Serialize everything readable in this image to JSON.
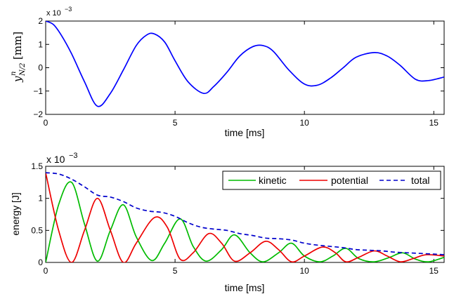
{
  "chart_data": [
    {
      "type": "line",
      "xlabel": "time [ms]",
      "ylabel_main": "y",
      "ylabel_sup": "n",
      "ylabel_sub": "N/2",
      "ylabel_unit": "[mm]",
      "y_exponent_base": "x 10",
      "y_exponent": "−3",
      "xlim": [
        0,
        15.4
      ],
      "ylim": [
        -2,
        2
      ],
      "xticks": [
        0,
        5,
        10,
        15
      ],
      "yticks": [
        -2,
        -1,
        0,
        1,
        2
      ],
      "xtick_labels": [
        "0",
        "5",
        "10",
        "15"
      ],
      "ytick_labels": [
        "−2",
        "−1",
        "0",
        "1",
        "2"
      ],
      "series": [
        {
          "color": "#0000ff",
          "style": "solid",
          "x": [
            0,
            0.3,
            0.6,
            1.0,
            1.5,
            2.0,
            2.5,
            3.0,
            3.5,
            3.9,
            4.2,
            4.6,
            5.0,
            5.5,
            6.1,
            6.5,
            7.0,
            7.5,
            8.0,
            8.4,
            8.8,
            9.4,
            10.0,
            10.5,
            11.0,
            11.5,
            12.0,
            12.7,
            13.2,
            13.7,
            14.3,
            14.8,
            15.4
          ],
          "y": [
            2.0,
            1.85,
            1.4,
            0.6,
            -0.6,
            -1.65,
            -1.1,
            -0.1,
            0.95,
            1.4,
            1.45,
            1.1,
            0.3,
            -0.6,
            -1.1,
            -0.8,
            -0.2,
            0.5,
            0.9,
            0.95,
            0.7,
            -0.1,
            -0.7,
            -0.75,
            -0.45,
            0.0,
            0.45,
            0.65,
            0.5,
            0.1,
            -0.5,
            -0.55,
            -0.4
          ]
        }
      ]
    },
    {
      "type": "line",
      "xlabel": "time [ms]",
      "ylabel": "energy [J]",
      "y_exponent_base": "x 10",
      "y_exponent": "−3",
      "xlim": [
        0,
        15.4
      ],
      "ylim": [
        0,
        1.5
      ],
      "xticks": [
        0,
        5,
        10,
        15
      ],
      "yticks": [
        0,
        0.5,
        1,
        1.5
      ],
      "xtick_labels": [
        "0",
        "5",
        "10",
        "15"
      ],
      "ytick_labels": [
        "0",
        "0.5",
        "1",
        "1.5"
      ],
      "legend_position": "top-right",
      "series": [
        {
          "name": "kinetic",
          "color": "#00bb00",
          "style": "solid",
          "x": [
            0,
            0.5,
            1.0,
            1.5,
            2.0,
            2.5,
            3.0,
            3.5,
            4.1,
            4.6,
            5.2,
            5.7,
            6.2,
            6.8,
            7.3,
            7.9,
            8.4,
            9.0,
            9.5,
            10.0,
            10.6,
            11.1,
            11.6,
            12.1,
            12.7,
            13.3,
            13.8,
            14.3,
            14.8,
            15.4
          ],
          "y": [
            0,
            0.9,
            1.25,
            0.6,
            0.02,
            0.5,
            0.9,
            0.4,
            0.03,
            0.3,
            0.68,
            0.25,
            0.02,
            0.2,
            0.43,
            0.15,
            0.01,
            0.15,
            0.3,
            0.1,
            0.01,
            0.1,
            0.22,
            0.06,
            0.01,
            0.08,
            0.15,
            0.05,
            0.01,
            0.08
          ]
        },
        {
          "name": "potential",
          "color": "#ee0000",
          "style": "solid",
          "x": [
            0,
            0.5,
            1.0,
            1.5,
            2.0,
            2.5,
            3.0,
            3.5,
            4.2,
            4.7,
            5.2,
            5.7,
            6.3,
            6.8,
            7.3,
            7.9,
            8.5,
            9.0,
            9.5,
            10.0,
            10.7,
            11.2,
            11.6,
            12.1,
            12.7,
            13.2,
            13.7,
            14.2,
            14.7,
            15.4
          ],
          "y": [
            1.4,
            0.5,
            0.0,
            0.5,
            1.0,
            0.5,
            0.0,
            0.3,
            0.7,
            0.55,
            0.05,
            0.15,
            0.45,
            0.3,
            0.02,
            0.15,
            0.33,
            0.2,
            0.01,
            0.1,
            0.24,
            0.15,
            0.01,
            0.08,
            0.18,
            0.1,
            0.01,
            0.06,
            0.12,
            0.1
          ]
        },
        {
          "name": "total",
          "color": "#0000cc",
          "style": "dashed",
          "x": [
            0,
            0.5,
            1.0,
            1.5,
            2.0,
            2.5,
            3.0,
            3.5,
            4.0,
            4.5,
            5.0,
            5.5,
            6.0,
            6.5,
            7.0,
            7.5,
            8.0,
            8.5,
            9.0,
            9.5,
            10.0,
            10.5,
            11.0,
            11.5,
            12.0,
            12.5,
            13.0,
            13.5,
            14.0,
            14.5,
            15.0,
            15.4
          ],
          "y": [
            1.4,
            1.38,
            1.3,
            1.18,
            1.05,
            1.02,
            0.95,
            0.85,
            0.8,
            0.78,
            0.72,
            0.62,
            0.55,
            0.52,
            0.5,
            0.45,
            0.42,
            0.38,
            0.37,
            0.35,
            0.3,
            0.27,
            0.25,
            0.23,
            0.2,
            0.19,
            0.18,
            0.16,
            0.15,
            0.14,
            0.13,
            0.12
          ]
        }
      ]
    }
  ]
}
